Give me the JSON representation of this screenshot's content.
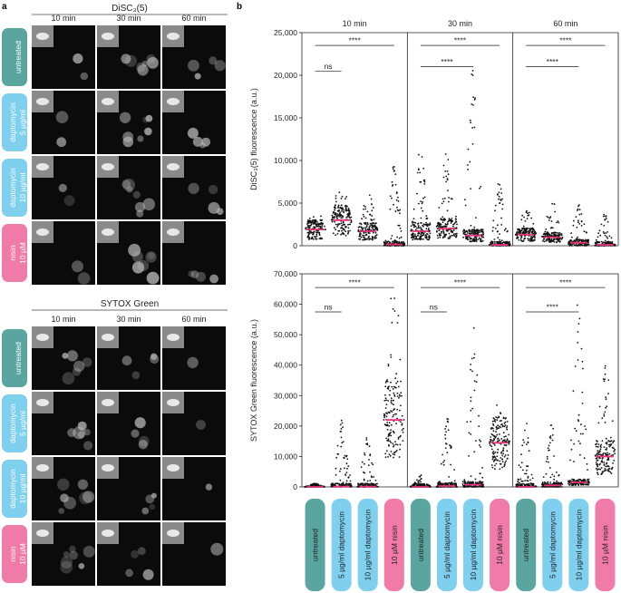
{
  "panel_labels": {
    "a": "a",
    "b": "b"
  },
  "micro": {
    "top_title": "DiSC₃(5)",
    "bottom_title": "SYTOX Green",
    "time_labels": [
      "10 min",
      "30 min",
      "60 min"
    ],
    "rows": [
      {
        "line1": "untreated",
        "line2": "",
        "color": "#5aa5a0"
      },
      {
        "line1": "daptomycin",
        "line2": "5 µg/ml",
        "color": "#7fd0ef"
      },
      {
        "line1": "daptomycin",
        "line2": "10 µg/ml",
        "color": "#7fd0ef"
      },
      {
        "line1": "nisin",
        "line2": "10 µM",
        "color": "#f07aa8"
      }
    ]
  },
  "colors": {
    "untreated": "#5aa5a0",
    "daptomycin": "#7fd0ef",
    "nisin": "#f07aa8",
    "median": "#e8317a",
    "dots": "#111111"
  },
  "chart_data": [
    {
      "type": "scatter",
      "subtype": "beeswarm",
      "ylabel": "DiSC₃(5) fluorescence (a.u.)",
      "ylim": [
        0,
        25000
      ],
      "yticks": [
        0,
        5000,
        10000,
        15000,
        20000,
        25000
      ],
      "ytick_labels": [
        "0",
        "5,000",
        "10,000",
        "15,000",
        "20,000",
        "25,000"
      ],
      "timepoints": [
        "10 min",
        "30 min",
        "60 min"
      ],
      "groups": [
        {
          "timepoint": "10 min",
          "condition": "untreated",
          "median": 1900,
          "spread_max": 3600
        },
        {
          "timepoint": "10 min",
          "condition": "5 µg/ml daptomycin",
          "median": 3000,
          "spread_max": 6500
        },
        {
          "timepoint": "10 min",
          "condition": "10 µg/ml daptomycin",
          "median": 1700,
          "spread_max": 6000
        },
        {
          "timepoint": "10 min",
          "condition": "10 µM nisin",
          "median": 150,
          "spread_max": 9300
        },
        {
          "timepoint": "30 min",
          "condition": "untreated",
          "median": 1700,
          "spread_max": 11600
        },
        {
          "timepoint": "30 min",
          "condition": "5 µg/ml daptomycin",
          "median": 2000,
          "spread_max": 11000
        },
        {
          "timepoint": "30 min",
          "condition": "10 µg/ml daptomycin",
          "median": 1200,
          "spread_max": 20700
        },
        {
          "timepoint": "30 min",
          "condition": "10 µM nisin",
          "median": 100,
          "spread_max": 7600
        },
        {
          "timepoint": "60 min",
          "condition": "untreated",
          "median": 1300,
          "spread_max": 4200
        },
        {
          "timepoint": "60 min",
          "condition": "5 µg/ml daptomycin",
          "median": 1000,
          "spread_max": 5000
        },
        {
          "timepoint": "60 min",
          "condition": "10 µg/ml daptomycin",
          "median": 350,
          "spread_max": 5000
        },
        {
          "timepoint": "60 min",
          "condition": "10 µM nisin",
          "median": 100,
          "spread_max": 3800
        }
      ],
      "significance": [
        {
          "timepoint": "10 min",
          "from": 0,
          "to": 3,
          "y": 23500,
          "label": "****"
        },
        {
          "timepoint": "10 min",
          "from": 0,
          "to": 1,
          "y": 20500,
          "label": "ns"
        },
        {
          "timepoint": "30 min",
          "from": 0,
          "to": 3,
          "y": 23500,
          "label": "****"
        },
        {
          "timepoint": "30 min",
          "from": 0,
          "to": 2,
          "y": 21000,
          "label": "****"
        },
        {
          "timepoint": "60 min",
          "from": 0,
          "to": 3,
          "y": 23500,
          "label": "****"
        },
        {
          "timepoint": "60 min",
          "from": 0,
          "to": 2,
          "y": 21000,
          "label": "****"
        }
      ]
    },
    {
      "type": "scatter",
      "subtype": "beeswarm",
      "ylabel": "SYTOX Green fluorescence (a.u.)",
      "ylim": [
        0,
        70000
      ],
      "yticks": [
        0,
        10000,
        20000,
        30000,
        40000,
        50000,
        60000,
        70000
      ],
      "ytick_labels": [
        "0",
        "10,000",
        "20,000",
        "30,000",
        "40,000",
        "50,000",
        "60,000",
        "70,000"
      ],
      "timepoints": [
        "10 min",
        "30 min",
        "60 min"
      ],
      "groups": [
        {
          "timepoint": "10 min",
          "condition": "untreated",
          "median": 0,
          "spread_max": 1200
        },
        {
          "timepoint": "10 min",
          "condition": "5 µg/ml daptomycin",
          "median": 100,
          "spread_max": 22000
        },
        {
          "timepoint": "10 min",
          "condition": "10 µg/ml daptomycin",
          "median": 100,
          "spread_max": 17000
        },
        {
          "timepoint": "10 min",
          "condition": "10 µM nisin",
          "median": 22000,
          "spread_max": 63000
        },
        {
          "timepoint": "30 min",
          "condition": "untreated",
          "median": 0,
          "spread_max": 4000
        },
        {
          "timepoint": "30 min",
          "condition": "5 µg/ml daptomycin",
          "median": 300,
          "spread_max": 23000
        },
        {
          "timepoint": "30 min",
          "condition": "10 µg/ml daptomycin",
          "median": 700,
          "spread_max": 58000
        },
        {
          "timepoint": "30 min",
          "condition": "10 µM nisin",
          "median": 14500,
          "spread_max": 27000
        },
        {
          "timepoint": "60 min",
          "condition": "untreated",
          "median": 0,
          "spread_max": 21000
        },
        {
          "timepoint": "60 min",
          "condition": "5 µg/ml daptomycin",
          "median": 500,
          "spread_max": 22000
        },
        {
          "timepoint": "60 min",
          "condition": "10 µg/ml daptomycin",
          "median": 1500,
          "spread_max": 62000
        },
        {
          "timepoint": "60 min",
          "condition": "10 µM nisin",
          "median": 10000,
          "spread_max": 40000
        }
      ],
      "significance": [
        {
          "timepoint": "10 min",
          "from": 0,
          "to": 3,
          "y": 65500,
          "label": "****"
        },
        {
          "timepoint": "10 min",
          "from": 0,
          "to": 1,
          "y": 57500,
          "label": "ns"
        },
        {
          "timepoint": "30 min",
          "from": 0,
          "to": 3,
          "y": 65500,
          "label": "****"
        },
        {
          "timepoint": "30 min",
          "from": 0,
          "to": 1,
          "y": 57500,
          "label": "ns"
        },
        {
          "timepoint": "60 min",
          "from": 0,
          "to": 3,
          "y": 65500,
          "label": "****"
        },
        {
          "timepoint": "60 min",
          "from": 0,
          "to": 2,
          "y": 57500,
          "label": "****"
        }
      ]
    }
  ],
  "x_categories": [
    "untreated",
    "5 µg/ml daptomycin",
    "10 µg/ml daptomycin",
    "10 µM nisin"
  ]
}
